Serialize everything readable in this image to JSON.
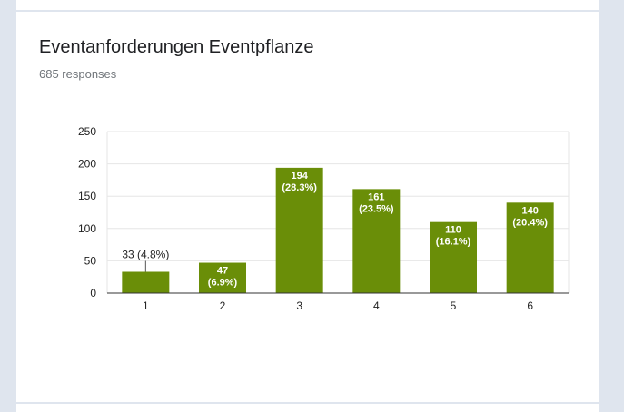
{
  "question": {
    "title": "Eventanforderungen Eventpflanze",
    "responses_text": "685 responses"
  },
  "colors": {
    "bar": "#6a8e08",
    "grid": "#e6e6e6",
    "axis": "#333333"
  },
  "chart_data": {
    "type": "bar",
    "title": "Eventanforderungen Eventpflanze",
    "xlabel": "",
    "ylabel": "",
    "categories": [
      "1",
      "2",
      "3",
      "4",
      "5",
      "6"
    ],
    "values": [
      33,
      47,
      194,
      161,
      110,
      140
    ],
    "bar_label_counts": [
      "33",
      "47",
      "194",
      "161",
      "110",
      "140"
    ],
    "bar_label_percents": [
      "(4.8%)",
      "(6.9%)",
      "(28.3%)",
      "(23.5%)",
      "(16.1%)",
      "(20.4%)"
    ],
    "outside_labels": [
      "33 (4.8%)",
      "",
      "",
      "",
      "",
      ""
    ],
    "yticks": [
      0,
      50,
      100,
      150,
      200,
      250
    ],
    "ylim": [
      0,
      250
    ],
    "grid": true,
    "legend": "none"
  }
}
